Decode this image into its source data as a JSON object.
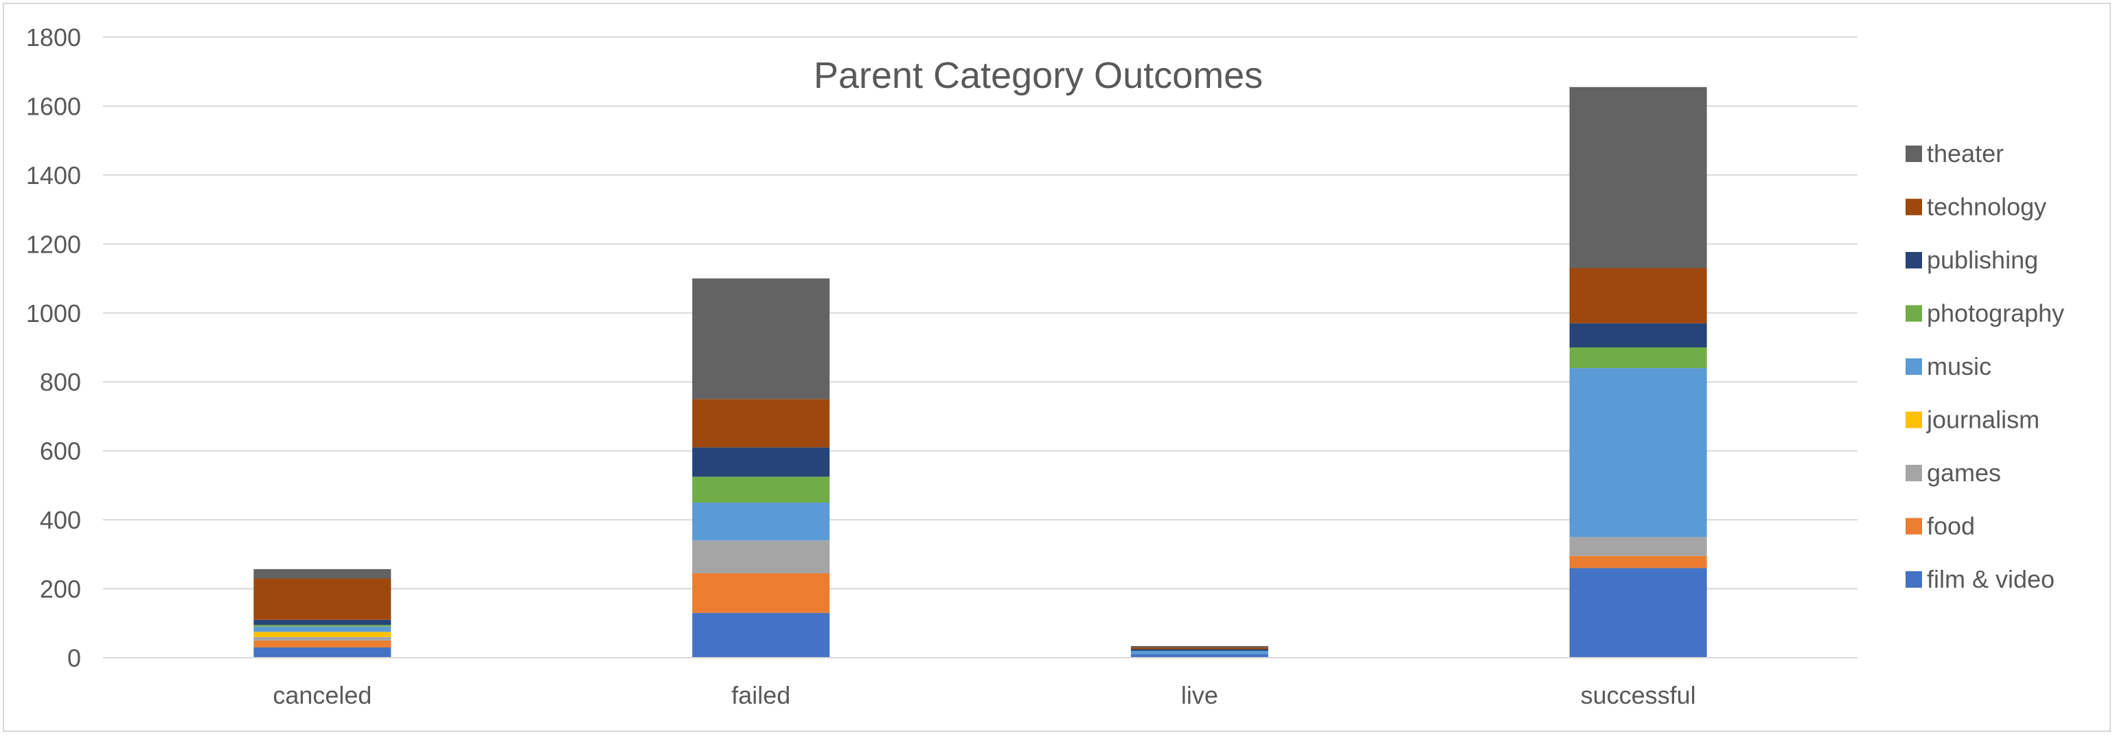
{
  "chart_data": {
    "type": "bar",
    "stacked": true,
    "title": "Parent Category Outcomes",
    "xlabel": "",
    "ylabel": "",
    "ylim": [
      0,
      1800
    ],
    "yticks": [
      0,
      200,
      400,
      600,
      800,
      1000,
      1200,
      1400,
      1600,
      1800
    ],
    "grid": true,
    "legend_position": "right",
    "categories": [
      "canceled",
      "failed",
      "live",
      "successful"
    ],
    "series": [
      {
        "name": "film & video",
        "color": "#4472C4",
        "values": [
          30,
          130,
          10,
          260
        ]
      },
      {
        "name": "food",
        "color": "#ED7D31",
        "values": [
          20,
          115,
          0,
          35
        ]
      },
      {
        "name": "games",
        "color": "#A5A5A5",
        "values": [
          10,
          95,
          0,
          55
        ]
      },
      {
        "name": "journalism",
        "color": "#FFC000",
        "values": [
          15,
          0,
          0,
          0
        ]
      },
      {
        "name": "music",
        "color": "#5B9BD5",
        "values": [
          15,
          110,
          10,
          490
        ]
      },
      {
        "name": "photography",
        "color": "#70AD47",
        "values": [
          5,
          75,
          0,
          60
        ]
      },
      {
        "name": "publishing",
        "color": "#264478",
        "values": [
          15,
          85,
          5,
          70
        ]
      },
      {
        "name": "technology",
        "color": "#9E480E",
        "values": [
          120,
          140,
          5,
          160
        ]
      },
      {
        "name": "theater",
        "color": "#636363",
        "values": [
          27,
          350,
          4,
          525
        ]
      }
    ]
  }
}
